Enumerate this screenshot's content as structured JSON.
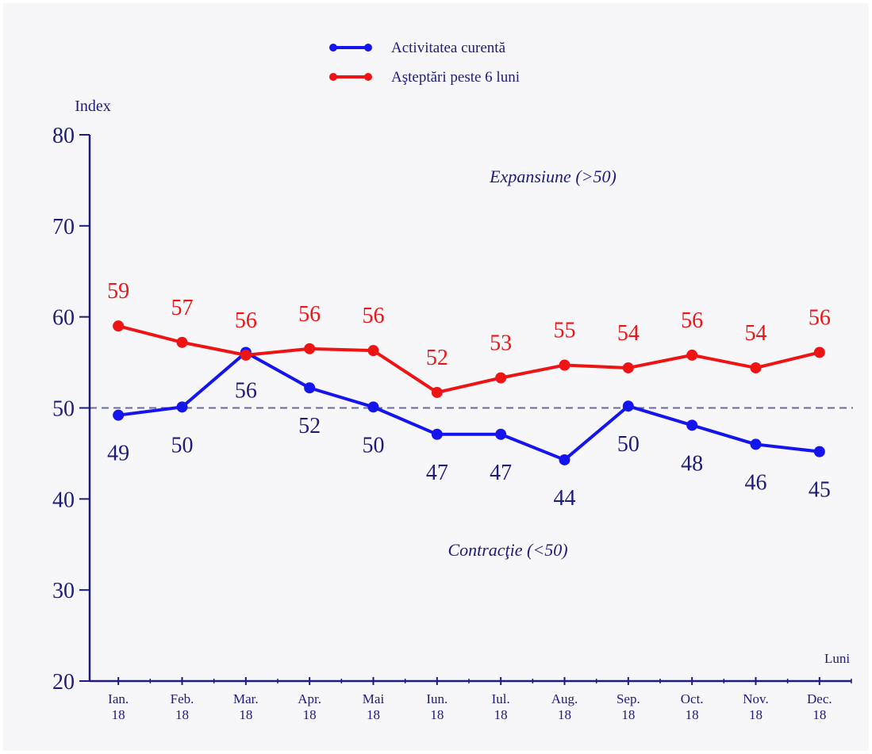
{
  "chart_data": {
    "type": "line",
    "y_axis_label": "Index",
    "x_axis_label": "Luni",
    "annotations": [
      "Expansiune (>50)",
      "Contracţie (<50)"
    ],
    "categories": [
      "Ian.\n18",
      "Feb.\n18",
      "Mar.\n18",
      "Apr.\n18",
      "Mai\n18",
      "Iun.\n18",
      "Iul.\n18",
      "Aug.\n18",
      "Sep.\n18",
      "Oct.\n18",
      "Nov.\n18",
      "Dec.\n18"
    ],
    "series": [
      {
        "name": "Activitatea curentă",
        "color": "#1414ee",
        "label_color": "#1c1c7a",
        "label_position": "below",
        "values": [
          49.2,
          50.1,
          56.1,
          52.2,
          50.1,
          47.1,
          47.1,
          44.3,
          50.2,
          48.1,
          46.0,
          45.2
        ],
        "value_labels": [
          "49",
          "50",
          "56",
          "52",
          "50",
          "47",
          "47",
          "44",
          "50",
          "48",
          "46",
          "45"
        ]
      },
      {
        "name": "Aşteptări peste 6 luni",
        "color": "#ee1414",
        "label_color": "#ee1414",
        "label_position": "above",
        "values": [
          59.0,
          57.2,
          55.8,
          56.5,
          56.3,
          51.7,
          53.3,
          54.7,
          54.4,
          55.8,
          54.4,
          56.1
        ],
        "value_labels": [
          "59",
          "57",
          "56",
          "56",
          "56",
          "52",
          "53",
          "55",
          "54",
          "56",
          "54",
          "56"
        ]
      }
    ],
    "reference_line": 50,
    "ylim": [
      20,
      80
    ],
    "yticks": [
      20,
      30,
      40,
      50,
      60,
      70,
      80
    ]
  }
}
